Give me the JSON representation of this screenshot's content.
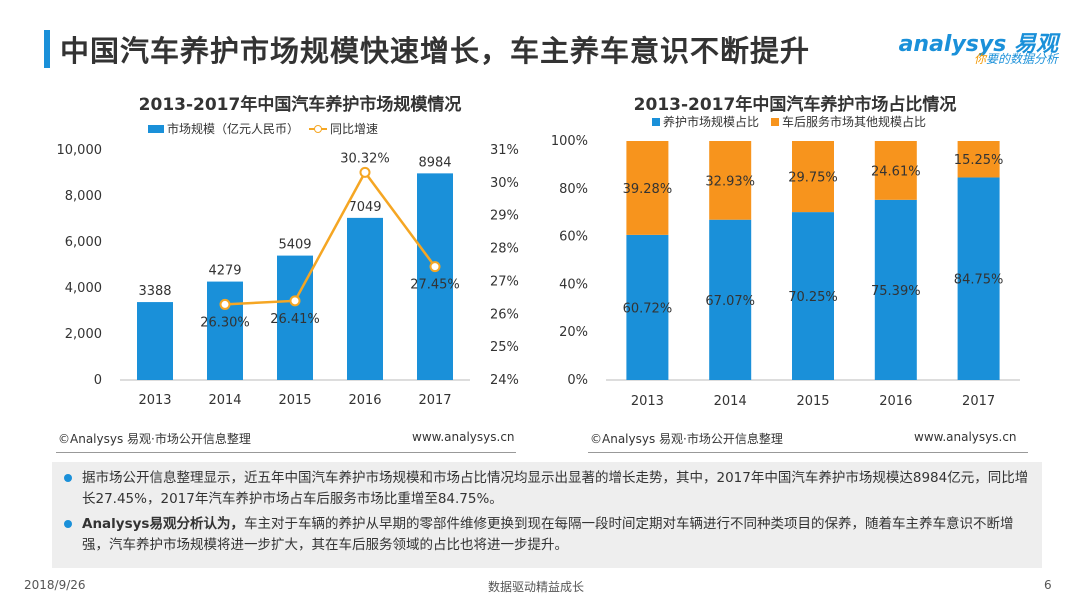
{
  "header": {
    "title": "中国汽车养护市场规模快速增长，车主养车意识不断提升",
    "logo_main": "analysys 易观",
    "logo_tag_prefix": "你",
    "logo_tag": "要的数据分析"
  },
  "left_chart": {
    "title": "2013-2017年中国汽车养护市场规模情况",
    "legend_bar": "市场规模（亿元人民币）",
    "legend_line": "同比增速",
    "source": "©Analysys 易观·市场公开信息整理",
    "url": "www.analysys.cn"
  },
  "right_chart": {
    "title": "2013-2017年中国汽车养护市场占比情况",
    "legend_a": "养护市场规模占比",
    "legend_b": "车后服务市场其他规模占比",
    "source": "©Analysys 易观·市场公开信息整理",
    "url": "www.analysys.cn"
  },
  "summary": {
    "p1": "据市场公开信息整理显示，近五年中国汽车养护市场规模和市场占比情况均显示出显著的增长走势，其中，2017年中国汽车养护市场规模达8984亿元，同比增长27.45%，2017年汽车养护市场占车后服务市场比重增至84.75%。",
    "p2_bold": "Analysys易观分析认为，",
    "p2": "车主对于车辆的养护从早期的零部件维修更换到现在每隔一段时间定期对车辆进行不同种类项目的保养，随着车主养车意识不断增强，汽车养护市场规模将进一步扩大，其在车后服务领域的占比也将进一步提升。"
  },
  "footer": {
    "date": "2018/9/26",
    "slogan": "数据驱动精益成长",
    "page": "6"
  },
  "chart_data": [
    {
      "type": "bar",
      "title": "2013-2017年中国汽车养护市场规模情况",
      "categories": [
        "2013",
        "2014",
        "2015",
        "2016",
        "2017"
      ],
      "series": [
        {
          "name": "市场规模（亿元人民币）",
          "type": "bar",
          "axis": "left",
          "values": [
            3388,
            4279,
            5409,
            7049,
            8984
          ],
          "labels": [
            "3388",
            "4279",
            "5409",
            "7049",
            "8984"
          ],
          "color": "#1a90d9"
        },
        {
          "name": "同比增速",
          "type": "line",
          "axis": "right",
          "values": [
            null,
            26.3,
            26.41,
            30.32,
            27.45
          ],
          "labels": [
            "",
            "26.30%",
            "26.41%",
            "30.32%",
            "27.45%"
          ],
          "color": "#f5a623"
        }
      ],
      "y_left": {
        "min": 0,
        "max": 10000,
        "ticks": [
          0,
          2000,
          4000,
          6000,
          8000,
          10000
        ],
        "tick_labels": [
          "0",
          "2,000",
          "4,000",
          "6,000",
          "8,000",
          "10,000"
        ]
      },
      "y_right": {
        "min": 24,
        "max": 31,
        "ticks": [
          24,
          25,
          26,
          27,
          28,
          29,
          30,
          31
        ],
        "tick_labels": [
          "24%",
          "25%",
          "26%",
          "27%",
          "28%",
          "29%",
          "30%",
          "31%"
        ]
      },
      "grid": false,
      "legend_position": "top"
    },
    {
      "type": "bar",
      "stacked": true,
      "title": "2013-2017年中国汽车养护市场占比情况",
      "categories": [
        "2013",
        "2014",
        "2015",
        "2016",
        "2017"
      ],
      "series": [
        {
          "name": "养护市场规模占比",
          "values": [
            60.72,
            67.07,
            70.25,
            75.39,
            84.75
          ],
          "labels": [
            "60.72%",
            "67.07%",
            "70.25%",
            "75.39%",
            "84.75%"
          ],
          "color": "#1a90d9"
        },
        {
          "name": "车后服务市场其他规模占比",
          "values": [
            39.28,
            32.93,
            29.75,
            24.61,
            15.25
          ],
          "labels": [
            "39.28%",
            "32.93%",
            "29.75%",
            "24.61%",
            "15.25%"
          ],
          "color": "#f7941d"
        }
      ],
      "y": {
        "min": 0,
        "max": 100,
        "ticks": [
          0,
          20,
          40,
          60,
          80,
          100
        ],
        "tick_labels": [
          "0%",
          "20%",
          "40%",
          "60%",
          "80%",
          "100%"
        ]
      },
      "grid": false,
      "legend_position": "top"
    }
  ]
}
